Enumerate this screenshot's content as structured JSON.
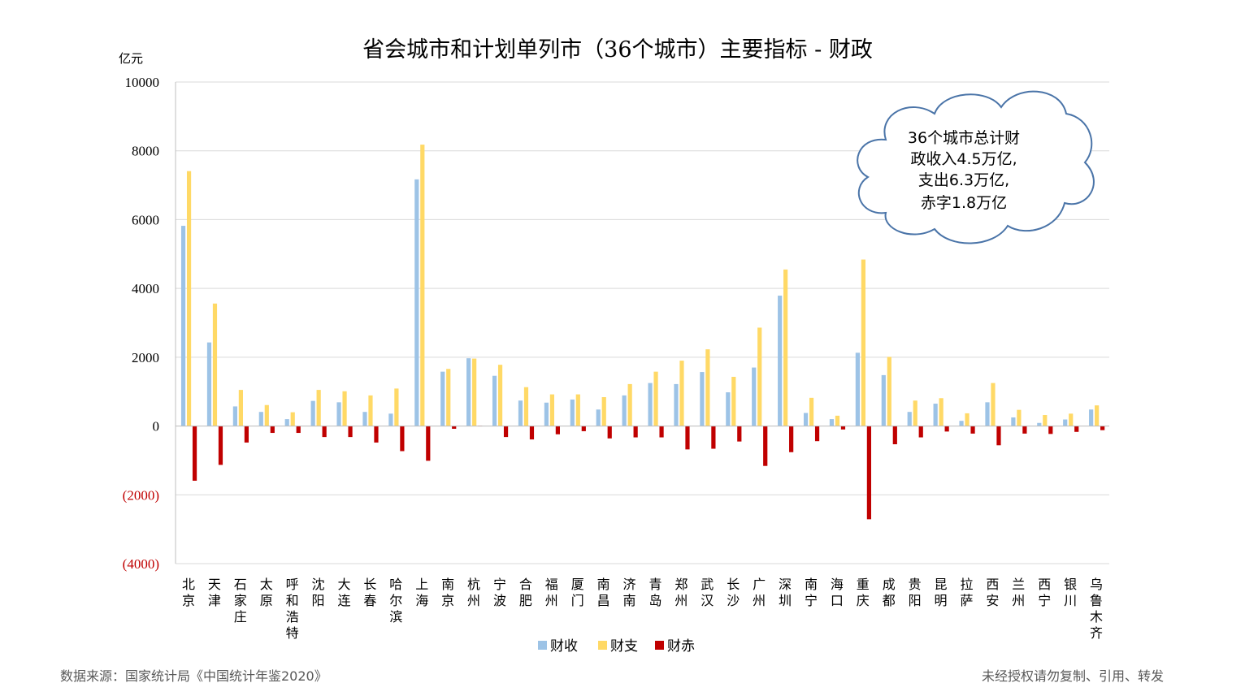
{
  "chart_data": {
    "type": "bar",
    "title": "省会城市和计划单列市（36个城市）主要指标 - 财政",
    "ylabel": "亿元",
    "ylim": [
      -4000,
      10000
    ],
    "yticks": [
      10000,
      8000,
      6000,
      4000,
      2000,
      0,
      -2000,
      -4000
    ],
    "ytick_labels": [
      "10000",
      "8000",
      "6000",
      "4000",
      "2000",
      "0",
      "(2000)",
      "(4000)"
    ],
    "negative_tick_color": "#C00000",
    "grid": true,
    "legend_position": "bottom",
    "categories": [
      "北京",
      "天津",
      "石家庄",
      "太原",
      "呼和浩特",
      "沈阳",
      "大连",
      "长春",
      "哈尔滨",
      "上海",
      "南京",
      "杭州",
      "宁波",
      "合肥",
      "福州",
      "厦门",
      "南昌",
      "济南",
      "青岛",
      "郑州",
      "武汉",
      "长沙",
      "广州",
      "深圳",
      "南宁",
      "海口",
      "重庆",
      "成都",
      "贵阳",
      "昆明",
      "拉萨",
      "西安",
      "兰州",
      "西宁",
      "银川",
      "乌鲁木齐"
    ],
    "series": [
      {
        "name": "财收",
        "color": "#9DC3E6",
        "values": [
          5820,
          2430,
          570,
          410,
          200,
          730,
          690,
          410,
          360,
          7170,
          1580,
          1970,
          1460,
          740,
          680,
          770,
          480,
          890,
          1250,
          1220,
          1570,
          980,
          1700,
          3790,
          380,
          200,
          2130,
          1480,
          410,
          650,
          150,
          690,
          250,
          90,
          190,
          480
        ]
      },
      {
        "name": "财支",
        "color": "#FFD966",
        "values": [
          7410,
          3560,
          1050,
          610,
          400,
          1050,
          1010,
          890,
          1090,
          8180,
          1660,
          1960,
          1780,
          1130,
          920,
          920,
          840,
          1220,
          1580,
          1900,
          2230,
          1430,
          2860,
          4550,
          820,
          300,
          4840,
          2010,
          740,
          810,
          370,
          1250,
          470,
          320,
          360,
          600
        ]
      },
      {
        "name": "财赤",
        "color": "#C00000",
        "values": [
          -1590,
          -1130,
          -480,
          -200,
          -200,
          -320,
          -320,
          -480,
          -730,
          -1010,
          -80,
          10,
          -320,
          -390,
          -240,
          -150,
          -360,
          -330,
          -330,
          -680,
          -660,
          -450,
          -1160,
          -760,
          -440,
          -100,
          -2710,
          -530,
          -330,
          -160,
          -220,
          -560,
          -220,
          -230,
          -170,
          -120
        ]
      }
    ]
  },
  "annotation": {
    "lines": [
      "36个城市总计财",
      "政收入4.5万亿,",
      "支出6.3万亿,",
      "赤字1.8万亿"
    ]
  },
  "footer": {
    "source": "数据来源：国家统计局《中国统计年鉴2020》",
    "copyright": "未经授权请勿复制、引用、转发"
  }
}
